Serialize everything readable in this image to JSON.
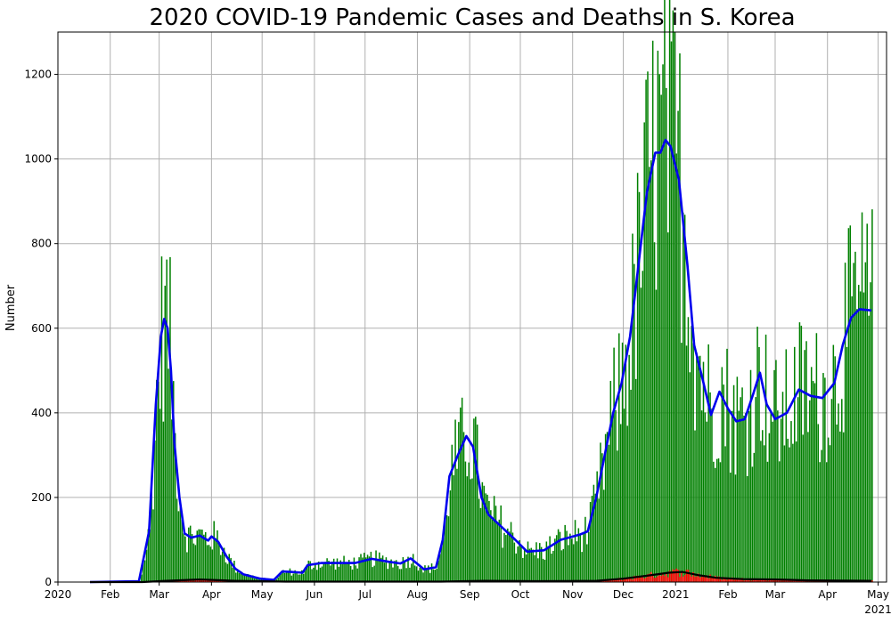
{
  "chart_data": {
    "type": "bar",
    "title": "2020 COVID-19 Pandemic Cases and Deaths in S. Korea",
    "xlabel": "",
    "ylabel": "Number",
    "ylim": [
      0,
      1300
    ],
    "xlim": [
      "2020-01-01",
      "2021-05-06"
    ],
    "grid": true,
    "yticks": [
      0,
      200,
      400,
      600,
      800,
      1000,
      1200
    ],
    "xticks": [
      {
        "date": "2020-01-01",
        "label": "2020"
      },
      {
        "date": "2020-02-01",
        "label": "Feb"
      },
      {
        "date": "2020-03-01",
        "label": "Mar"
      },
      {
        "date": "2020-04-01",
        "label": "Apr"
      },
      {
        "date": "2020-05-01",
        "label": "May"
      },
      {
        "date": "2020-06-01",
        "label": "Jun"
      },
      {
        "date": "2020-07-01",
        "label": "Jul"
      },
      {
        "date": "2020-08-01",
        "label": "Aug"
      },
      {
        "date": "2020-09-01",
        "label": "Sep"
      },
      {
        "date": "2020-10-01",
        "label": "Oct"
      },
      {
        "date": "2020-11-01",
        "label": "Nov"
      },
      {
        "date": "2020-12-01",
        "label": "Dec"
      },
      {
        "date": "2021-01-01",
        "label": "2021"
      },
      {
        "date": "2021-02-01",
        "label": "Feb"
      },
      {
        "date": "2021-03-01",
        "label": "Mar"
      },
      {
        "date": "2021-04-01",
        "label": "Apr"
      },
      {
        "date": "2021-05-01",
        "label": "May",
        "sublabel": "2021"
      }
    ],
    "cases_trend_keypoints": [
      [
        "2020-01-20",
        0
      ],
      [
        "2020-02-18",
        2
      ],
      [
        "2020-02-24",
        120
      ],
      [
        "2020-02-28",
        420
      ],
      [
        "2020-03-02",
        580
      ],
      [
        "2020-03-04",
        622
      ],
      [
        "2020-03-06",
        600
      ],
      [
        "2020-03-08",
        500
      ],
      [
        "2020-03-10",
        330
      ],
      [
        "2020-03-13",
        200
      ],
      [
        "2020-03-16",
        115
      ],
      [
        "2020-03-20",
        105
      ],
      [
        "2020-03-25",
        110
      ],
      [
        "2020-03-30",
        98
      ],
      [
        "2020-04-01",
        108
      ],
      [
        "2020-04-05",
        95
      ],
      [
        "2020-04-10",
        60
      ],
      [
        "2020-04-15",
        32
      ],
      [
        "2020-04-20",
        18
      ],
      [
        "2020-04-30",
        8
      ],
      [
        "2020-05-08",
        5
      ],
      [
        "2020-05-13",
        25
      ],
      [
        "2020-05-18",
        24
      ],
      [
        "2020-05-25",
        22
      ],
      [
        "2020-05-28",
        40
      ],
      [
        "2020-06-05",
        45
      ],
      [
        "2020-06-15",
        45
      ],
      [
        "2020-06-25",
        45
      ],
      [
        "2020-07-05",
        55
      ],
      [
        "2020-07-15",
        48
      ],
      [
        "2020-07-22",
        44
      ],
      [
        "2020-07-28",
        56
      ],
      [
        "2020-08-05",
        30
      ],
      [
        "2020-08-12",
        35
      ],
      [
        "2020-08-16",
        100
      ],
      [
        "2020-08-20",
        250
      ],
      [
        "2020-08-25",
        300
      ],
      [
        "2020-08-30",
        345
      ],
      [
        "2020-09-03",
        320
      ],
      [
        "2020-09-08",
        200
      ],
      [
        "2020-09-12",
        160
      ],
      [
        "2020-09-20",
        130
      ],
      [
        "2020-09-28",
        100
      ],
      [
        "2020-10-05",
        72
      ],
      [
        "2020-10-15",
        75
      ],
      [
        "2020-10-25",
        100
      ],
      [
        "2020-11-05",
        112
      ],
      [
        "2020-11-10",
        120
      ],
      [
        "2020-11-15",
        200
      ],
      [
        "2020-11-20",
        300
      ],
      [
        "2020-11-25",
        400
      ],
      [
        "2020-11-30",
        470
      ],
      [
        "2020-12-05",
        580
      ],
      [
        "2020-12-10",
        750
      ],
      [
        "2020-12-15",
        920
      ],
      [
        "2020-12-20",
        1015
      ],
      [
        "2020-12-23",
        1015
      ],
      [
        "2020-12-26",
        1045
      ],
      [
        "2020-12-29",
        1030
      ],
      [
        "2021-01-03",
        950
      ],
      [
        "2021-01-08",
        750
      ],
      [
        "2021-01-12",
        560
      ],
      [
        "2021-01-17",
        480
      ],
      [
        "2021-01-22",
        395
      ],
      [
        "2021-01-27",
        450
      ],
      [
        "2021-02-01",
        410
      ],
      [
        "2021-02-06",
        380
      ],
      [
        "2021-02-11",
        385
      ],
      [
        "2021-02-16",
        445
      ],
      [
        "2021-02-20",
        495
      ],
      [
        "2021-02-24",
        420
      ],
      [
        "2021-03-01",
        385
      ],
      [
        "2021-03-08",
        400
      ],
      [
        "2021-03-15",
        455
      ],
      [
        "2021-03-22",
        440
      ],
      [
        "2021-03-29",
        435
      ],
      [
        "2021-04-05",
        470
      ],
      [
        "2021-04-10",
        560
      ],
      [
        "2021-04-15",
        625
      ],
      [
        "2021-04-20",
        645
      ],
      [
        "2021-04-27",
        642
      ]
    ],
    "deaths_trend_keypoints": [
      [
        "2020-01-20",
        0
      ],
      [
        "2020-02-20",
        0
      ],
      [
        "2020-03-05",
        3
      ],
      [
        "2020-03-25",
        6
      ],
      [
        "2020-04-15",
        3
      ],
      [
        "2020-05-15",
        1
      ],
      [
        "2020-08-15",
        1
      ],
      [
        "2020-09-10",
        3
      ],
      [
        "2020-10-10",
        2
      ],
      [
        "2020-11-15",
        3
      ],
      [
        "2020-12-01",
        8
      ],
      [
        "2020-12-15",
        15
      ],
      [
        "2020-12-28",
        22
      ],
      [
        "2021-01-05",
        24
      ],
      [
        "2021-01-15",
        16
      ],
      [
        "2021-01-25",
        10
      ],
      [
        "2021-02-10",
        7
      ],
      [
        "2021-03-01",
        6
      ],
      [
        "2021-03-20",
        4
      ],
      [
        "2021-04-27",
        3
      ]
    ],
    "series": [
      {
        "color": "#008000",
        "render": "daily-bars"
      },
      {
        "color": "#ff0000",
        "render": "daily-bars"
      },
      {
        "color": "#0000ee",
        "render": "line"
      },
      {
        "color": "#000000",
        "render": "line"
      }
    ]
  }
}
